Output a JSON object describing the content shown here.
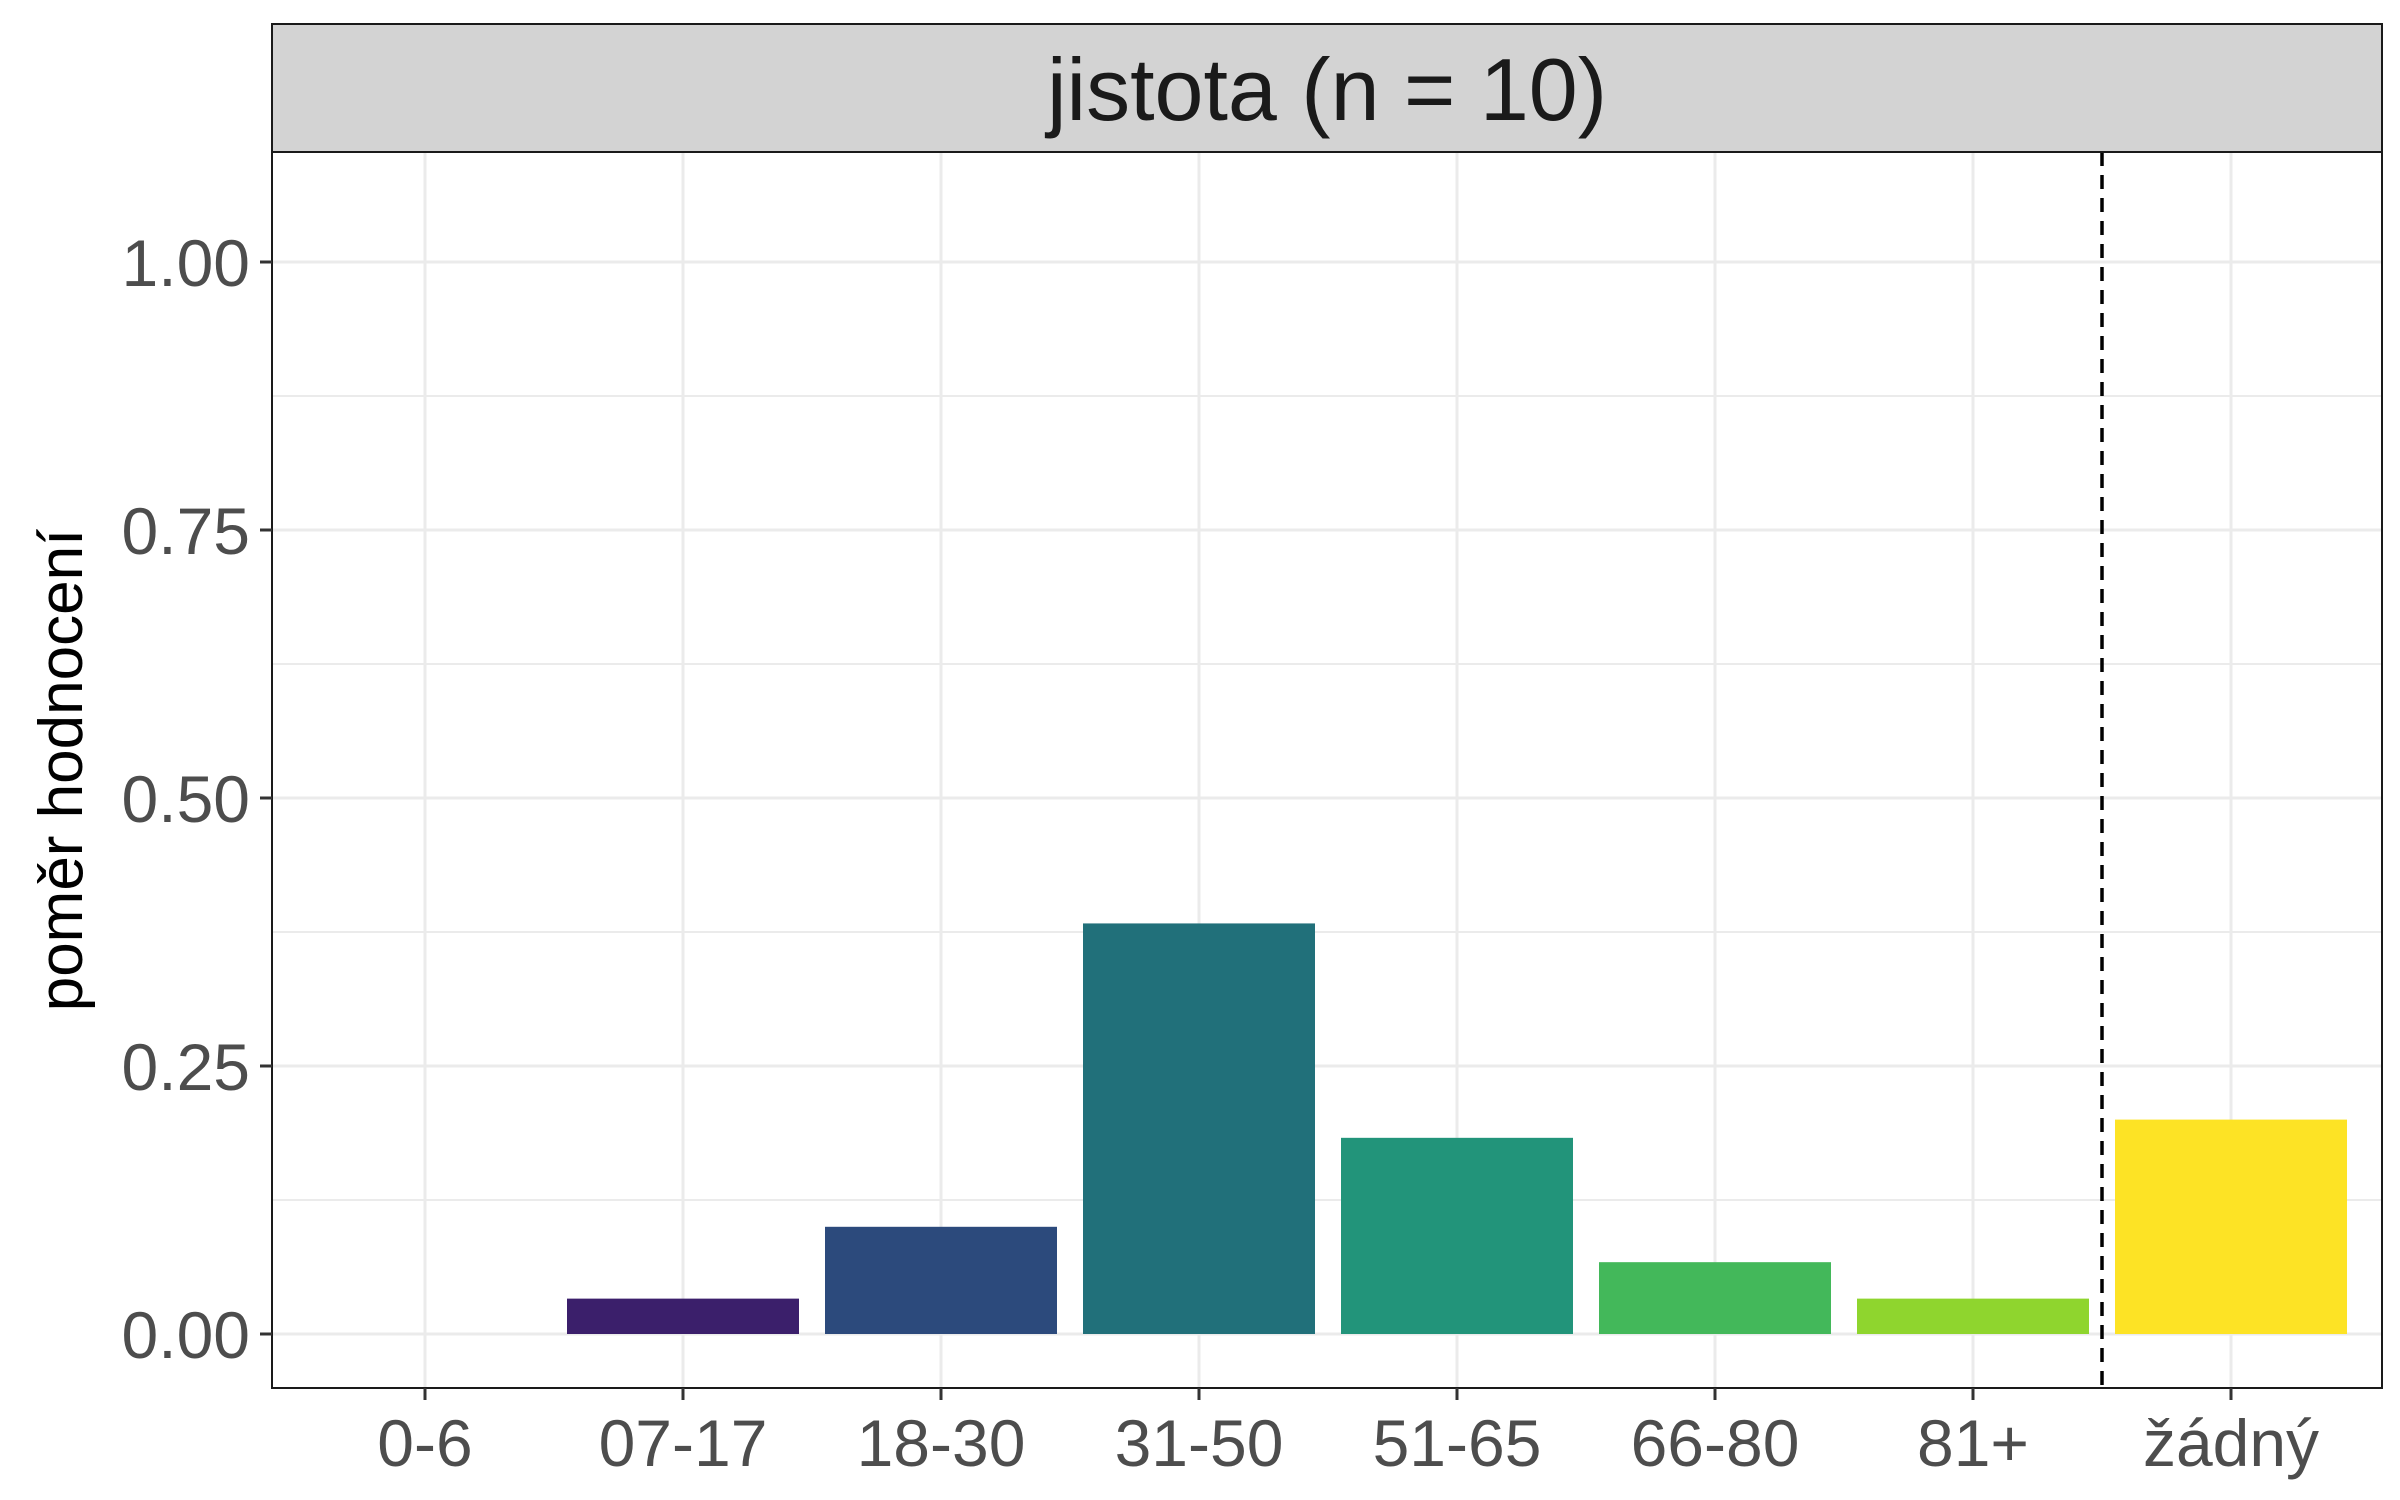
{
  "chart_data": {
    "type": "bar",
    "facet_title": "jistota (n = 10)",
    "xlabel": "",
    "ylabel": "poměr hodnocení",
    "categories": [
      "0-6",
      "07-17",
      "18-30",
      "31-50",
      "51-65",
      "66-80",
      "81+",
      "žádný"
    ],
    "values": [
      0.0,
      0.033,
      0.1,
      0.383,
      0.183,
      0.067,
      0.033,
      0.2
    ],
    "colors": [
      "#440154",
      "#3b1f6b",
      "#2c4a7c",
      "#21707a",
      "#22947a",
      "#43b85a",
      "#8fd52e",
      "#fde325"
    ],
    "ylim": [
      0,
      1.1
    ],
    "yticks": [
      "0.00",
      "0.25",
      "0.50",
      "0.75",
      "1.00"
    ],
    "ytick_values": [
      0,
      0.25,
      0.5,
      0.75,
      1.0
    ],
    "reference_line": {
      "between": [
        "81+",
        "žádný"
      ],
      "style": "dashed",
      "color": "#000000"
    },
    "grid": true,
    "strip_color": "#d3d3d3",
    "grid_color": "#ebebeb"
  }
}
